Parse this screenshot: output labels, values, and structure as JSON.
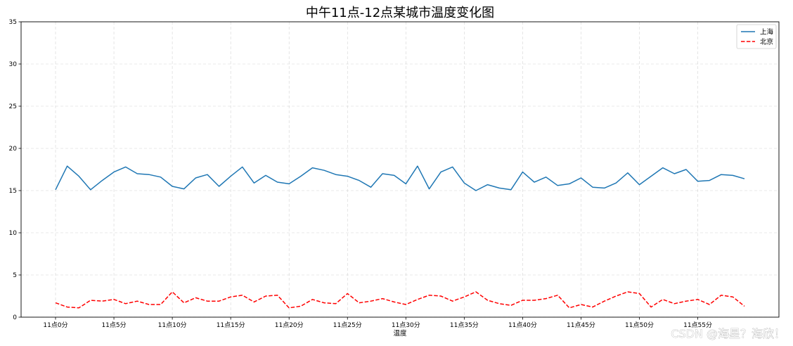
{
  "chart_data": {
    "type": "line",
    "title": "中午11点-12点某城市温度变化图",
    "xlabel": "温度",
    "ylabel": "",
    "ylim": [
      0,
      35
    ],
    "yticks": [
      0,
      5,
      10,
      15,
      20,
      25,
      30,
      35
    ],
    "xticklabels": [
      "11点0分",
      "11点5分",
      "11点10分",
      "11点15分",
      "11点20分",
      "11点25分",
      "11点30分",
      "11点35分",
      "11点40分",
      "11点45分",
      "11点50分",
      "11点55分"
    ],
    "grid": true,
    "legend_position": "top-right",
    "x": [
      0,
      1,
      2,
      3,
      4,
      5,
      6,
      7,
      8,
      9,
      10,
      11,
      12,
      13,
      14,
      15,
      16,
      17,
      18,
      19,
      20,
      21,
      22,
      23,
      24,
      25,
      26,
      27,
      28,
      29,
      30,
      31,
      32,
      33,
      34,
      35,
      36,
      37,
      38,
      39,
      40,
      41,
      42,
      43,
      44,
      45,
      46,
      47,
      48,
      49,
      50,
      51,
      52,
      53,
      54,
      55,
      56,
      57,
      58,
      59
    ],
    "series": [
      {
        "name": "上海",
        "color": "#1f77b4",
        "linestyle": "solid",
        "values": [
          15.1,
          17.9,
          16.7,
          15.1,
          16.2,
          17.2,
          17.8,
          17.0,
          16.9,
          16.6,
          15.5,
          15.2,
          16.5,
          16.9,
          15.5,
          16.7,
          17.8,
          15.9,
          16.8,
          16.0,
          15.8,
          16.7,
          17.7,
          17.4,
          16.9,
          16.7,
          16.2,
          15.4,
          17.0,
          16.8,
          15.8,
          17.9,
          15.2,
          17.2,
          17.8,
          15.9,
          15.0,
          15.7,
          15.3,
          15.1,
          17.2,
          16.0,
          16.6,
          15.6,
          15.8,
          16.5,
          15.4,
          15.3,
          15.9,
          17.1,
          15.7,
          16.7,
          17.7,
          17.0,
          17.5,
          16.1,
          16.2,
          16.9,
          16.8,
          16.4
        ]
      },
      {
        "name": "北京",
        "color": "#ff0000",
        "linestyle": "dashed",
        "values": [
          1.7,
          1.2,
          1.1,
          2.0,
          1.9,
          2.1,
          1.6,
          1.9,
          1.5,
          1.5,
          3.0,
          1.7,
          2.3,
          1.9,
          1.9,
          2.4,
          2.6,
          1.8,
          2.5,
          2.6,
          1.1,
          1.3,
          2.1,
          1.7,
          1.6,
          2.8,
          1.7,
          1.9,
          2.2,
          1.8,
          1.5,
          2.1,
          2.6,
          2.5,
          1.9,
          2.4,
          3.0,
          2.0,
          1.6,
          1.4,
          2.0,
          2.0,
          2.2,
          2.6,
          1.1,
          1.5,
          1.2,
          1.9,
          2.5,
          3.0,
          2.8,
          1.2,
          2.1,
          1.6,
          1.9,
          2.1,
          1.5,
          2.6,
          2.4,
          1.3
        ]
      }
    ]
  },
  "watermark": "CSDN @海星？海欣！"
}
